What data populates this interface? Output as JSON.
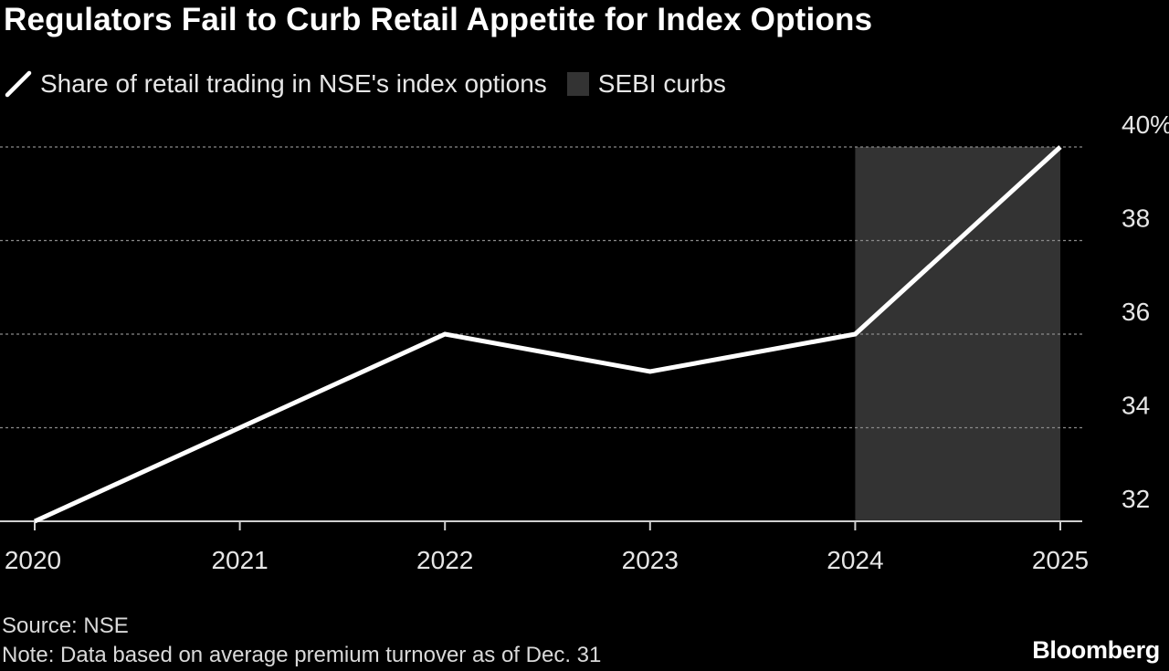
{
  "chart_data": {
    "type": "line",
    "title": "Regulators Fail to Curb Retail Appetite for Index Options",
    "x": [
      "2020",
      "2021",
      "2022",
      "2023",
      "2024",
      "2025"
    ],
    "series": [
      {
        "name": "Share of retail trading in NSE's index options",
        "values": [
          32,
          34,
          36,
          35.2,
          36,
          40
        ],
        "color": "#ffffff"
      }
    ],
    "shaded_region": {
      "name": "SEBI curbs",
      "from": "2024",
      "to": "2025",
      "color": "#333333"
    },
    "y_ticks": [
      "32",
      "34",
      "36",
      "38",
      "40%"
    ],
    "ylim": [
      32,
      40
    ],
    "grid": "horizontal dotted",
    "legend_placement": "top-left"
  },
  "footer": {
    "source": "Source: NSE",
    "note": "Note: Data based on average premium turnover as of Dec. 31"
  },
  "brand": "Bloomberg"
}
